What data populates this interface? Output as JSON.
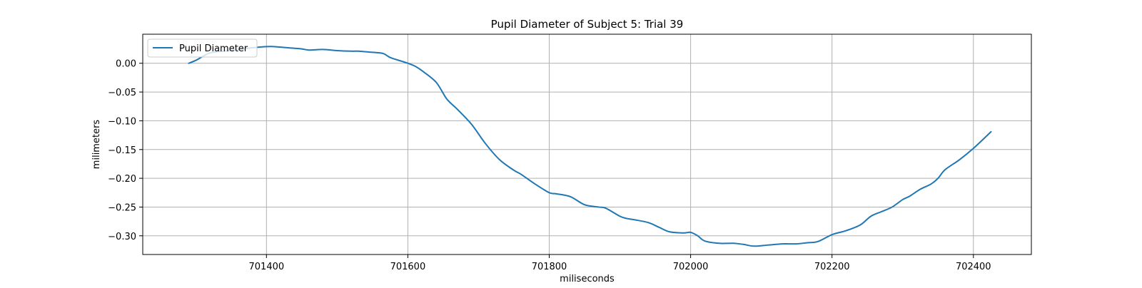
{
  "chart_data": {
    "type": "line",
    "title": "Pupil Diameter of Subject 5: Trial 39",
    "xlabel": "miliseconds",
    "ylabel": "milimeters",
    "xlim": [
      701225,
      702482
    ],
    "ylim": [
      -0.3325,
      0.0505
    ],
    "x_ticks": [
      701400,
      701600,
      701800,
      702000,
      702200,
      702400
    ],
    "x_tick_labels": [
      "701400",
      "701600",
      "701800",
      "702000",
      "702200",
      "702400"
    ],
    "y_ticks": [
      0.0,
      -0.05,
      -0.1,
      -0.15,
      -0.2,
      -0.25,
      -0.3
    ],
    "y_tick_labels": [
      "0.00",
      "−0.05",
      "−0.10",
      "−0.15",
      "−0.20",
      "−0.25",
      "−0.30"
    ],
    "grid": true,
    "legend": {
      "position": "upper-left",
      "entries": [
        "Pupil Diameter"
      ]
    },
    "colors": {
      "series": "#1f77b4",
      "grid": "#b0b0b0",
      "axes": "#000000"
    },
    "series": [
      {
        "name": "Pupil Diameter",
        "x": [
          701290,
          701300,
          701310,
          701320,
          701330,
          701340,
          701350,
          701360,
          701380,
          701400,
          701410,
          701430,
          701450,
          701460,
          701480,
          701500,
          701520,
          701530,
          701550,
          701565,
          701575,
          701590,
          701600,
          701610,
          701620,
          701640,
          701655,
          701670,
          701690,
          701710,
          701730,
          701750,
          701760,
          701780,
          701800,
          701810,
          701830,
          701850,
          701870,
          701880,
          701900,
          701910,
          701920,
          701940,
          701955,
          701970,
          701990,
          702000,
          702010,
          702020,
          702040,
          702060,
          702075,
          702090,
          702110,
          702130,
          702150,
          702165,
          702180,
          702200,
          702220,
          702240,
          702255,
          702270,
          702285,
          702300,
          702310,
          702325,
          702340,
          702350,
          702360,
          702380,
          702400,
          702425
        ],
        "y": [
          0.0,
          0.005,
          0.012,
          0.018,
          0.02,
          0.021,
          0.022,
          0.024,
          0.027,
          0.029,
          0.029,
          0.027,
          0.025,
          0.023,
          0.024,
          0.022,
          0.021,
          0.021,
          0.019,
          0.017,
          0.01,
          0.004,
          0.0,
          -0.005,
          -0.013,
          -0.033,
          -0.062,
          -0.08,
          -0.106,
          -0.14,
          -0.168,
          -0.186,
          -0.193,
          -0.21,
          -0.225,
          -0.227,
          -0.232,
          -0.246,
          -0.25,
          -0.252,
          -0.266,
          -0.27,
          -0.272,
          -0.277,
          -0.285,
          -0.293,
          -0.295,
          -0.294,
          -0.3,
          -0.309,
          -0.313,
          -0.313,
          -0.315,
          -0.318,
          -0.316,
          -0.314,
          -0.314,
          -0.312,
          -0.31,
          -0.298,
          -0.291,
          -0.281,
          -0.266,
          -0.258,
          -0.25,
          -0.237,
          -0.231,
          -0.219,
          -0.21,
          -0.2,
          -0.185,
          -0.168,
          -0.148,
          -0.119
        ]
      }
    ]
  }
}
